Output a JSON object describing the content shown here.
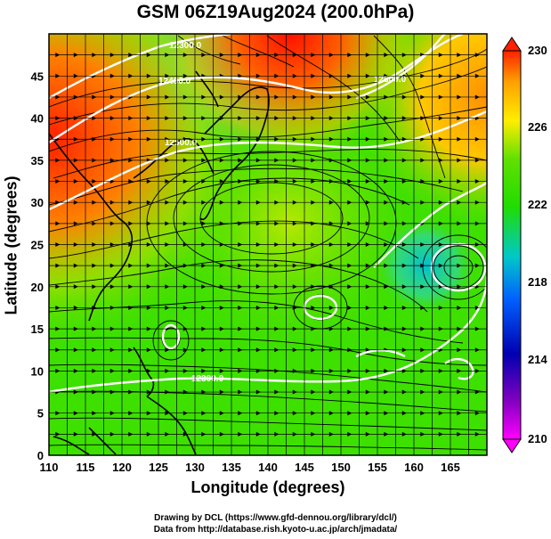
{
  "title": "GSM 06Z19Aug2024 (200.0hPa)",
  "xlabel": "Longitude (degrees)",
  "ylabel": "Latitude  (degrees)",
  "credits": {
    "line1": "Drawing by DCL (https://www.gfd-dennou.org/library/dcl/)",
    "line2": "Data from http://database.rish.kyoto-u.ac.jp/arch/jmadata/"
  },
  "map": {
    "lon_range": [
      110,
      170
    ],
    "lat_range": [
      0,
      50
    ],
    "x_ticks": [
      "110",
      "115",
      "120",
      "125",
      "130",
      "135",
      "140",
      "145",
      "150",
      "155",
      "160",
      "165"
    ],
    "y_ticks": [
      "0",
      "5",
      "10",
      "15",
      "20",
      "25",
      "30",
      "35",
      "40",
      "45"
    ]
  },
  "colorbar": {
    "labels": [
      "230",
      "226",
      "222",
      "218",
      "214",
      "210"
    ],
    "colors": [
      "#ff0000",
      "#ffa000",
      "#ffee00",
      "#20dd00",
      "#00c8c8",
      "#0060ff",
      "#0000b0",
      "#ff00ff"
    ]
  },
  "contour_labels": [
    "12300.0",
    "12400.0",
    "12500.0",
    "12500.0",
    "12300.0"
  ]
}
